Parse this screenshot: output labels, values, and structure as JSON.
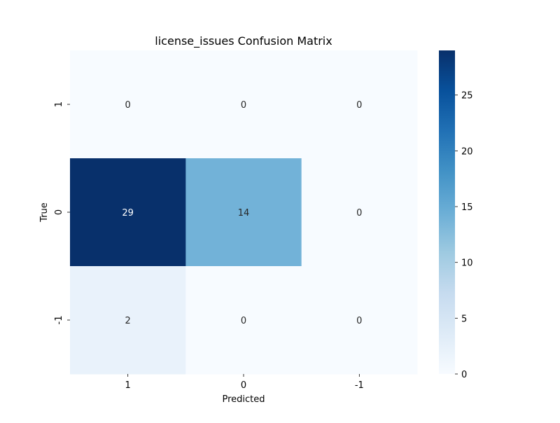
{
  "chart_data": {
    "type": "heatmap",
    "title": "license_issues Confusion Matrix",
    "xlabel": "Predicted",
    "ylabel": "True",
    "x_categories": [
      "1",
      "0",
      "-1"
    ],
    "y_categories": [
      "1",
      "0",
      "-1"
    ],
    "matrix": [
      [
        0,
        0,
        0
      ],
      [
        29,
        14,
        0
      ],
      [
        2,
        0,
        0
      ]
    ],
    "colormap": "Blues",
    "value_range": [
      0,
      29
    ],
    "colorbar": {
      "ticks": [
        "0",
        "5",
        "10",
        "15",
        "20",
        "25"
      ],
      "tick_values": [
        0,
        5,
        10,
        15,
        20,
        25
      ]
    },
    "colors": {
      "min": "#f7fbff",
      "max": "#08306b"
    }
  }
}
